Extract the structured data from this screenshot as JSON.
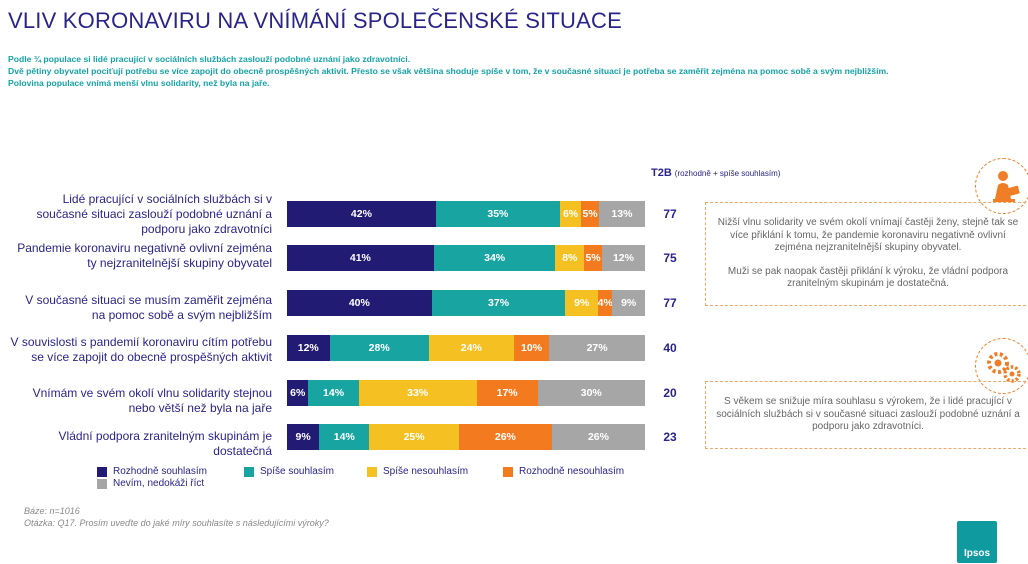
{
  "header": {
    "title": "VLIV KORONAVIRU NA VNÍMÁNÍ SPOLEČENSKÉ SITUACE",
    "intro": [
      "Podle ¾ populace si lidé pracující v sociálních službách zaslouží podobné uznání jako zdravotníci.",
      "Dvě pětiny obyvatel pociťují potřebu se více zapojit do obecně prospěšných aktivit. Přesto se však většina shoduje spíše v tom, že v současné situaci je potřeba se zaměřit zejména na pomoc sobě a svým nejbližším.",
      "Polovina populace vnímá menší vlnu solidarity, než byla na jaře."
    ]
  },
  "t2b_header": {
    "label": "T2B",
    "sub": "(rozhodně + spíše souhlasím)"
  },
  "chart_data": {
    "type": "bar",
    "orientation": "horizontal",
    "stacked": true,
    "unit": "%",
    "categories": [
      "Lidé pracující v sociálních službách si v současné situaci zaslouží podobné uznání a podporu jako zdravotníci",
      "Pandemie koronaviru negativně ovlivní zejména ty nejzranitelnější skupiny obyvatel",
      "V současné situaci se musím zaměřit zejména na pomoc sobě a svým nejbližším",
      "V souvislosti s pandemií koronaviru cítím potřebu se více zapojit do obecně prospěšných aktivit",
      "Vnímám ve svém okolí vlnu solidarity stejnou nebo větší než byla na jaře",
      "Vládní podpora zranitelným skupinám je dostatečná"
    ],
    "series": [
      {
        "name": "Rozhodně souhlasím",
        "color": "#221b73",
        "values": [
          42,
          41,
          40,
          12,
          6,
          9
        ]
      },
      {
        "name": "Spíše souhlasím",
        "color": "#18a4a0",
        "values": [
          35,
          34,
          37,
          28,
          14,
          14
        ]
      },
      {
        "name": "Spíše nesouhlasím",
        "color": "#f5c022",
        "values": [
          6,
          8,
          9,
          24,
          33,
          25
        ]
      },
      {
        "name": "Rozhodně nesouhlasím",
        "color": "#f47a1f",
        "values": [
          5,
          5,
          4,
          10,
          17,
          26
        ]
      },
      {
        "name": "Nevím, nedokáži říct",
        "color": "#a6a6a6",
        "values": [
          13,
          12,
          9,
          27,
          30,
          26
        ]
      }
    ],
    "t2b": [
      77,
      75,
      77,
      40,
      20,
      23
    ],
    "legend_position": "bottom"
  },
  "info_boxes": [
    {
      "icon": "person-reading-icon",
      "paragraphs": [
        "Nižší vlnu solidarity ve svém okolí vnímají častěji ženy, stejně tak se více přiklání k tomu, že pandemie koronaviru negativně ovlivní zejména nejzranitelnější skupiny obyvatel.",
        "Muži se pak naopak častěji přiklání k výroku, že vládní podpora zranitelným skupinám je dostatečná."
      ]
    },
    {
      "icon": "gears-icon",
      "paragraphs": [
        "S věkem se snižuje míra souhlasu s výrokem, že i lidé pracující v sociálních službách si v současné situaci zaslouží podobné uznání a podporu jako zdravotníci."
      ]
    }
  ],
  "notes": {
    "base": "Báze: n=1016",
    "question": "Otázka: Q17. Prosím uveďte do jaké míry souhlasíte s následujícími výroky?"
  },
  "logo": {
    "text": "Ipsos",
    "color": "#0f9aa0"
  }
}
